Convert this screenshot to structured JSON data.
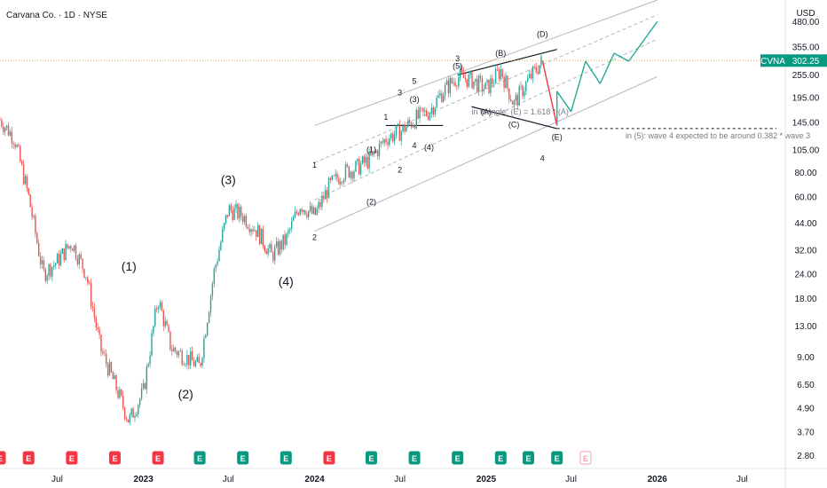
{
  "header": {
    "title": "Carvana Co. · 1D · NYSE"
  },
  "price_axis": {
    "currency_label": "USD"
  },
  "ticker": {
    "symbol": "CVNA",
    "price": "302.25"
  },
  "annotations": {
    "triangle_note": "in triangle: (E) = 1.618 * (A)",
    "wave_note": "in (5): wave 4 expected to be around 0.382 * wave 3"
  },
  "colors": {
    "up": "#26a69a",
    "down": "#ef5350",
    "price_line": "#e0b040",
    "channel": "#b2b5be",
    "projection_up": "#22ab94",
    "projection_down": "#f23645",
    "badge": "#089981"
  },
  "chart_data": {
    "type": "candlestick",
    "y_scale": "log",
    "y_ticks": [
      "480.00",
      "355.00",
      "255.00",
      "195.00",
      "145.00",
      "105.00",
      "80.00",
      "60.00",
      "44.00",
      "32.00",
      "24.00",
      "18.00",
      "13.00",
      "9.00",
      "6.50",
      "4.90",
      "3.70",
      "2.80"
    ],
    "y_tick_values": [
      480,
      355,
      255,
      195,
      145,
      105,
      80,
      60,
      44,
      32,
      24,
      18,
      13,
      9,
      6.5,
      4.9,
      3.7,
      2.8
    ],
    "x_ticks": [
      "Jul",
      "2023",
      "Jul",
      "2024",
      "Jul",
      "2025",
      "Jul",
      "2026",
      "Jul"
    ],
    "x_tick_dates": [
      "2022-07",
      "2023-01",
      "2023-07",
      "2024-01",
      "2024-07",
      "2025-01",
      "2025-07",
      "2026-01",
      "2026-07"
    ],
    "price_path": [
      [
        "2022-03",
        150
      ],
      [
        "2022-04",
        120
      ],
      [
        "2022-05",
        60
      ],
      [
        "2022-06",
        24
      ],
      [
        "2022-07",
        28
      ],
      [
        "2022-08",
        35
      ],
      [
        "2022-09",
        24
      ],
      [
        "2022-10",
        10
      ],
      [
        "2022-11",
        6.5
      ],
      [
        "2022-12",
        4.2
      ],
      [
        "2023-01",
        6
      ],
      [
        "2023-02",
        18
      ],
      [
        "2023-03",
        10
      ],
      [
        "2023-04",
        9
      ],
      [
        "2023-05",
        8
      ],
      [
        "2023-06",
        25
      ],
      [
        "2023-07",
        52
      ],
      [
        "2023-08",
        48
      ],
      [
        "2023-09",
        40
      ],
      [
        "2023-10",
        30
      ],
      [
        "2023-11",
        36
      ],
      [
        "2023-12",
        55
      ],
      [
        "2024-01",
        48
      ],
      [
        "2024-02",
        68
      ],
      [
        "2024-03",
        80
      ],
      [
        "2024-04",
        85
      ],
      [
        "2024-05",
        95
      ],
      [
        "2024-06",
        120
      ],
      [
        "2024-07",
        130
      ],
      [
        "2024-08",
        150
      ],
      [
        "2024-09",
        165
      ],
      [
        "2024-10",
        210
      ],
      [
        "2024-11",
        250
      ],
      [
        "2024-12",
        240
      ],
      [
        "2025-01",
        215
      ],
      [
        "2025-02",
        270
      ],
      [
        "2025-03",
        180
      ],
      [
        "2025-04",
        240
      ],
      [
        "2025-05",
        302.25
      ]
    ],
    "wave_labels": [
      {
        "label": "(1)",
        "date": "2022-12",
        "price": 25
      },
      {
        "label": "(2)",
        "date": "2023-04",
        "price": 5.5
      },
      {
        "label": "(3)",
        "date": "2023-07",
        "price": 70
      },
      {
        "label": "(4)",
        "date": "2023-11",
        "price": 21
      },
      {
        "label": "1",
        "date": "2024-01",
        "price": 85
      },
      {
        "label": "2",
        "date": "2024-01",
        "price": 36
      },
      {
        "label": "3",
        "date": "2024-11",
        "price": 300
      },
      {
        "label": "4",
        "date": "2025-05",
        "price": 92
      },
      {
        "label": "(1)",
        "date": "2024-05",
        "price": 102
      },
      {
        "label": "(2)",
        "date": "2024-05",
        "price": 55
      },
      {
        "label": "(3)",
        "date": "2024-08",
        "price": 185
      },
      {
        "label": "(4)",
        "date": "2024-09",
        "price": 105
      },
      {
        "label": "(5)",
        "date": "2024-11",
        "price": 275
      },
      {
        "label": "(A)",
        "date": "2025-01",
        "price": 160
      },
      {
        "label": "(B)",
        "date": "2025-02",
        "price": 320
      },
      {
        "label": "(C)",
        "date": "2025-03",
        "price": 137
      },
      {
        "label": "(D)",
        "date": "2025-05",
        "price": 400
      },
      {
        "label": "(E)",
        "date": "2025-06",
        "price": 118
      },
      {
        "label": "1",
        "date": "2024-06",
        "price": 150
      },
      {
        "label": "2",
        "date": "2024-07",
        "price": 80
      },
      {
        "label": "3",
        "date": "2024-07",
        "price": 200
      },
      {
        "label": "4",
        "date": "2024-08",
        "price": 107
      },
      {
        "label": "5",
        "date": "2024-08",
        "price": 230
      }
    ],
    "projection_path": [
      [
        "2025-05",
        302.25
      ],
      [
        "2025-06",
        140
      ],
      [
        "2025-06",
        210
      ],
      [
        "2025-07",
        165
      ],
      [
        "2025-08",
        300
      ],
      [
        "2025-09",
        230
      ],
      [
        "2025-10",
        330
      ],
      [
        "2025-11",
        300
      ],
      [
        "2026-01",
        480
      ]
    ],
    "level_line_price": 135,
    "earnings_markers": [
      {
        "date": "2022-03",
        "type": "E",
        "color": "red"
      },
      {
        "date": "2022-05",
        "type": "E",
        "color": "red"
      },
      {
        "date": "2022-08",
        "type": "E",
        "color": "red"
      },
      {
        "date": "2022-11",
        "type": "E",
        "color": "red"
      },
      {
        "date": "2023-02",
        "type": "E",
        "color": "red"
      },
      {
        "date": "2023-05",
        "type": "E",
        "color": "green"
      },
      {
        "date": "2023-08",
        "type": "E",
        "color": "green"
      },
      {
        "date": "2023-11",
        "type": "E",
        "color": "green"
      },
      {
        "date": "2024-02",
        "type": "E",
        "color": "red"
      },
      {
        "date": "2024-05",
        "type": "E",
        "color": "green"
      },
      {
        "date": "2024-08",
        "type": "E",
        "color": "green"
      },
      {
        "date": "2024-11",
        "type": "E",
        "color": "green"
      },
      {
        "date": "2025-02",
        "type": "E",
        "color": "green"
      },
      {
        "date": "2025-04",
        "type": "E",
        "color": "green"
      },
      {
        "date": "2025-06",
        "type": "E",
        "color": "green"
      },
      {
        "date": "2025-08",
        "type": "E",
        "color": "pending"
      }
    ]
  }
}
